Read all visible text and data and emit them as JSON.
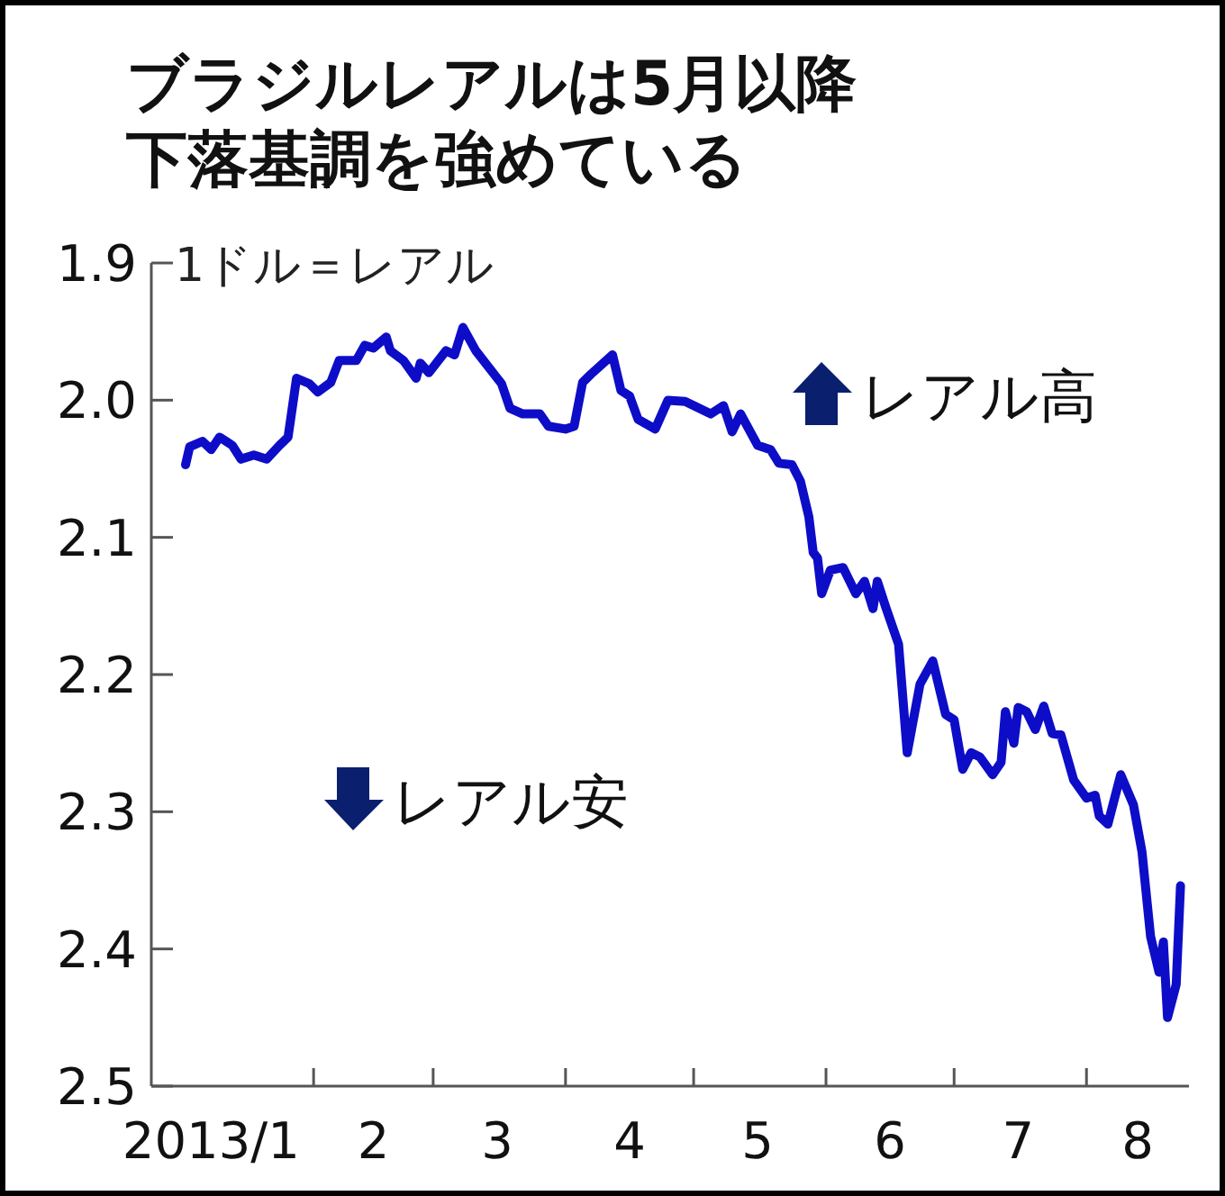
{
  "chart_data": {
    "type": "line",
    "title": "ブラジルレアルは5月以降下落基調を強めている",
    "ylabel": "1ドル＝レアル",
    "annotations": [
      "レアル高",
      "レアル安"
    ],
    "xlim": [
      "2012-12-25",
      "2013-08-25"
    ],
    "xticks": [
      {
        "value": "2013-01-08",
        "label": "2013/1"
      },
      {
        "value": "2013-02-01",
        "label": null
      },
      {
        "value": "2013-02-15",
        "label": "2"
      },
      {
        "value": "2013-03-01",
        "label": null
      },
      {
        "value": "2013-03-16",
        "label": "3"
      },
      {
        "value": "2013-04-01",
        "label": null
      },
      {
        "value": "2013-04-16",
        "label": "4"
      },
      {
        "value": "2013-05-01",
        "label": null
      },
      {
        "value": "2013-05-16",
        "label": "5"
      },
      {
        "value": "2013-06-01",
        "label": null
      },
      {
        "value": "2013-06-16",
        "label": "6"
      },
      {
        "value": "2013-07-01",
        "label": null
      },
      {
        "value": "2013-07-16",
        "label": "7"
      },
      {
        "value": "2013-08-01",
        "label": null
      },
      {
        "value": "2013-08-13",
        "label": "8"
      }
    ],
    "ylim": [
      2.5,
      1.9
    ],
    "yticks": [
      {
        "value": 1.9,
        "label": "1.9"
      },
      {
        "value": 2.0,
        "label": "2.0"
      },
      {
        "value": 2.1,
        "label": "2.1"
      },
      {
        "value": 2.2,
        "label": "2.2"
      },
      {
        "value": 2.3,
        "label": "2.3"
      },
      {
        "value": 2.4,
        "label": "2.4"
      },
      {
        "value": 2.5,
        "label": "2.5"
      }
    ],
    "series": [
      {
        "color": "#0d0dc8",
        "x": [
          "2013-01-02",
          "2013-01-03",
          "2013-01-06",
          "2013-01-08",
          "2013-01-10",
          "2013-01-13",
          "2013-01-15",
          "2013-01-18",
          "2013-01-21",
          "2013-01-24",
          "2013-01-26",
          "2013-01-28",
          "2013-01-31",
          "2013-02-02",
          "2013-02-05",
          "2013-02-07",
          "2013-02-11",
          "2013-02-13",
          "2013-02-15",
          "2013-02-18",
          "2013-02-19",
          "2013-02-22",
          "2013-02-25",
          "2013-02-26",
          "2013-02-28",
          "2013-03-04",
          "2013-03-06",
          "2013-03-08",
          "2013-03-11",
          "2013-03-15",
          "2013-03-17",
          "2013-03-19",
          "2013-03-22",
          "2013-03-26",
          "2013-03-28",
          "2013-04-01",
          "2013-04-03",
          "2013-04-05",
          "2013-04-07",
          "2013-04-12",
          "2013-04-14",
          "2013-04-16",
          "2013-04-18",
          "2013-04-22",
          "2013-04-25",
          "2013-04-29",
          "2013-05-05",
          "2013-05-08",
          "2013-05-10",
          "2013-05-12",
          "2013-05-16",
          "2013-05-19",
          "2013-05-21",
          "2013-05-24",
          "2013-05-26",
          "2013-05-28",
          "2013-05-29",
          "2013-05-30",
          "2013-05-31",
          "2013-06-02",
          "2013-06-05",
          "2013-06-08",
          "2013-06-10",
          "2013-06-12",
          "2013-06-13",
          "2013-06-15",
          "2013-06-18",
          "2013-06-20",
          "2013-06-23",
          "2013-06-26",
          "2013-06-29",
          "2013-07-01",
          "2013-07-03",
          "2013-07-05",
          "2013-07-07",
          "2013-07-10",
          "2013-07-12",
          "2013-07-13",
          "2013-07-15",
          "2013-07-16",
          "2013-07-18",
          "2013-07-20",
          "2013-07-22",
          "2013-07-24",
          "2013-07-26",
          "2013-07-29",
          "2013-08-01",
          "2013-08-03",
          "2013-08-04",
          "2013-08-06",
          "2013-08-09",
          "2013-08-12",
          "2013-08-14",
          "2013-08-16",
          "2013-08-18",
          "2013-08-19",
          "2013-08-20",
          "2013-08-22",
          "2013-08-23"
        ],
        "values": [
          2.047,
          2.034,
          2.03,
          2.036,
          2.027,
          2.033,
          2.043,
          2.04,
          2.043,
          2.033,
          2.027,
          1.984,
          1.988,
          1.994,
          1.987,
          1.971,
          1.971,
          1.96,
          1.962,
          1.954,
          1.964,
          1.971,
          1.984,
          1.973,
          1.98,
          1.964,
          1.967,
          1.947,
          1.964,
          1.98,
          1.988,
          2.006,
          2.01,
          2.01,
          2.019,
          2.021,
          2.019,
          1.987,
          1.981,
          1.967,
          1.993,
          1.997,
          2.014,
          2.021,
          2.0,
          2.001,
          2.01,
          2.004,
          2.023,
          2.01,
          2.033,
          2.036,
          2.046,
          2.047,
          2.059,
          2.085,
          2.111,
          2.115,
          2.141,
          2.124,
          2.122,
          2.141,
          2.132,
          2.152,
          2.132,
          2.151,
          2.178,
          2.257,
          2.207,
          2.19,
          2.229,
          2.233,
          2.269,
          2.257,
          2.26,
          2.273,
          2.264,
          2.227,
          2.25,
          2.224,
          2.227,
          2.24,
          2.223,
          2.243,
          2.244,
          2.277,
          2.29,
          2.288,
          2.303,
          2.309,
          2.273,
          2.295,
          2.329,
          2.391,
          2.417,
          2.395,
          2.45,
          2.426,
          2.354
        ]
      }
    ]
  }
}
